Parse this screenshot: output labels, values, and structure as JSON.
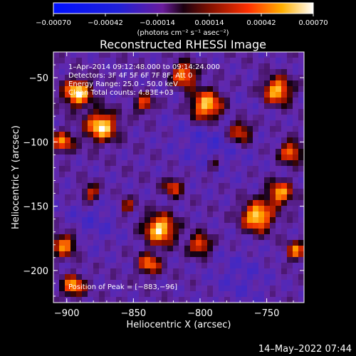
{
  "chart_data": {
    "type": "heatmap",
    "title": "Reconstructed RHESSI Image",
    "xlabel": "Heliocentric X (arcsec)",
    "ylabel": "Heliocentric Y (arcsec)",
    "xlim": [
      -910,
      -722
    ],
    "ylim": [
      -225,
      -30
    ],
    "xticks": [
      -900,
      -850,
      -800,
      -750
    ],
    "xtick_labels": [
      "−900",
      "−850",
      "−800",
      "−750"
    ],
    "yticks": [
      -50,
      -100,
      -150,
      -200
    ],
    "ytick_labels": [
      "−50",
      "−100",
      "−150",
      "−200"
    ],
    "colorbar": {
      "colormap": "hot-blue",
      "range": [
        -0.0007,
        0.0007
      ],
      "ticks": [
        -0.0007,
        -0.00042,
        -0.00014,
        0.00014,
        0.00042,
        0.0007
      ],
      "tick_labels": [
        "−0.00070",
        "−0.00042",
        "−0.00014",
        "0.00014",
        "0.00042",
        "0.00070"
      ],
      "units_text": "(photons cm⁻² s⁻¹ asec⁻²)"
    },
    "annotations": [
      "1–Apr–2014 09:12:48.000 to 09:14:24.000",
      "Detectors: 3F 4F 5F 6F 7F 8F, Att 0",
      "Energy Range: 25.0 – 50.0 keV",
      "Clean     Total counts: 4.83E+03"
    ],
    "peak_label": "Position of Peak = [−883,−96]",
    "blobs": [
      {
        "x": -892,
        "y": -62,
        "r": 10,
        "a": 1.0
      },
      {
        "x": -874,
        "y": -88,
        "r": 11,
        "a": 1.0
      },
      {
        "x": -903,
        "y": -100,
        "r": 8,
        "a": 0.7
      },
      {
        "x": -842,
        "y": -70,
        "r": 7,
        "a": 0.6
      },
      {
        "x": -812,
        "y": -48,
        "r": 9,
        "a": 0.8
      },
      {
        "x": -795,
        "y": -72,
        "r": 12,
        "a": 1.0
      },
      {
        "x": -770,
        "y": -92,
        "r": 9,
        "a": 0.7
      },
      {
        "x": -742,
        "y": -60,
        "r": 10,
        "a": 0.9
      },
      {
        "x": -732,
        "y": -108,
        "r": 8,
        "a": 0.75
      },
      {
        "x": -820,
        "y": -135,
        "r": 7,
        "a": 0.6
      },
      {
        "x": -830,
        "y": -168,
        "r": 11,
        "a": 1.0
      },
      {
        "x": -838,
        "y": -195,
        "r": 8,
        "a": 0.7
      },
      {
        "x": -855,
        "y": -150,
        "r": 6,
        "a": 0.5
      },
      {
        "x": -902,
        "y": -180,
        "r": 9,
        "a": 0.75
      },
      {
        "x": -882,
        "y": -140,
        "r": 7,
        "a": 0.6
      },
      {
        "x": -895,
        "y": -212,
        "r": 8,
        "a": 0.8
      },
      {
        "x": -757,
        "y": -158,
        "r": 11,
        "a": 1.0
      },
      {
        "x": -740,
        "y": -140,
        "r": 9,
        "a": 0.8
      },
      {
        "x": -728,
        "y": -185,
        "r": 7,
        "a": 0.7
      },
      {
        "x": -800,
        "y": -180,
        "r": 8,
        "a": 0.7
      },
      {
        "x": -790,
        "y": -118,
        "r": 5,
        "a": 0.4
      }
    ]
  },
  "timestamp": "14–May–2022 07:44"
}
